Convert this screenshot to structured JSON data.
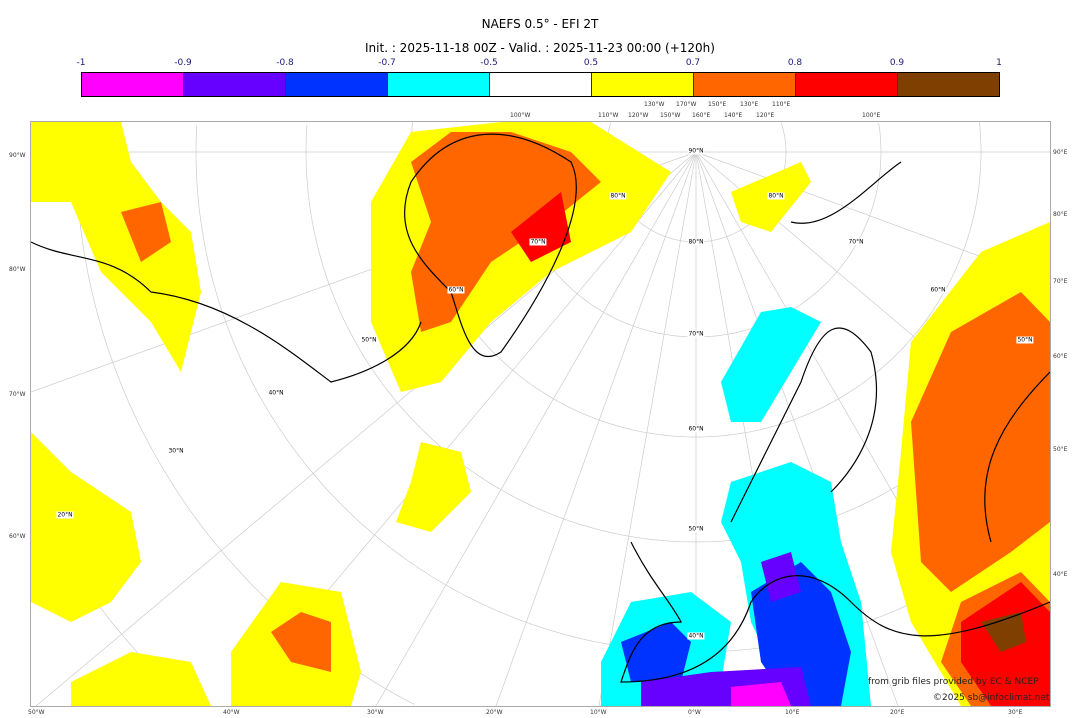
{
  "title": "NAEFS 0.5° - EFI 2T",
  "subtitle": "Init. : 2025-11-18 00Z - Valid. : 2025-11-23 00:00 (+120h)",
  "colorbar": {
    "ticks": [
      "-1",
      "-0.9",
      "-0.8",
      "-0.7",
      "-0.5",
      "0.5",
      "0.7",
      "0.8",
      "0.9",
      "1"
    ],
    "colors": [
      "#ff00ff",
      "#6600ff",
      "#0033ff",
      "#00ffff",
      "#ffffff",
      "#ffff00",
      "#ff6600",
      "#ff0000",
      "#7f3f00"
    ]
  },
  "axes": {
    "left": [
      "90°W",
      "80°W",
      "70°W",
      "60°W"
    ],
    "right": [
      "90°E",
      "80°E",
      "70°E",
      "60°E",
      "50°E",
      "40°E"
    ],
    "bottom": [
      "50°W",
      "40°W",
      "30°W",
      "20°W",
      "10°W",
      "0°W",
      "10°E",
      "20°E",
      "30°E"
    ],
    "top": [
      "100°W",
      "110°W",
      "120°W",
      "130°W",
      "150°W",
      "170°W",
      "160°E",
      "150°E",
      "140°E",
      "130°E",
      "120°E",
      "110°E",
      "100°E"
    ]
  },
  "map_labels": [
    "90°N",
    "80°N",
    "80°N",
    "70°N",
    "80°N",
    "70°N",
    "60°N",
    "60°N",
    "70°N",
    "50°N",
    "50°N",
    "60°N",
    "40°N",
    "30°N",
    "20°N",
    "50°N",
    "40°N"
  ],
  "credits": {
    "source": "from grib files provided by EC & NCEP",
    "copyright": "©2025 sb@infoclimat.net"
  }
}
